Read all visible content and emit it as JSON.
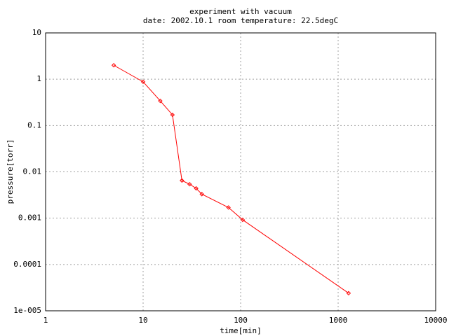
{
  "chart_data": {
    "type": "line",
    "title": "experiment with vacuum",
    "subtitle": "date: 2002.10.1 room temperature: 22.5degC",
    "x_label": "time[min]",
    "y_label": "pressure[torr]",
    "log_x": true,
    "log_y": true,
    "grid": true,
    "xlim": [
      1,
      10000
    ],
    "xticks": [
      1,
      10,
      100,
      1000,
      10000
    ],
    "ylim": [
      1e-05,
      10
    ],
    "yticks": [
      10,
      1,
      0.1,
      0.01,
      0.001,
      0.0001,
      {
        "value": 1e-05,
        "label": "1e-005"
      }
    ],
    "series": [
      {
        "color": "#ff0000",
        "x": [
          5,
          10,
          15,
          20,
          25,
          30,
          35,
          40,
          75,
          105,
          1280
        ],
        "values": [
          2,
          0.88,
          0.34,
          0.17,
          0.0065,
          0.0054,
          0.0044,
          0.0033,
          0.0017,
          0.00092,
          2.4e-05
        ]
      }
    ]
  }
}
